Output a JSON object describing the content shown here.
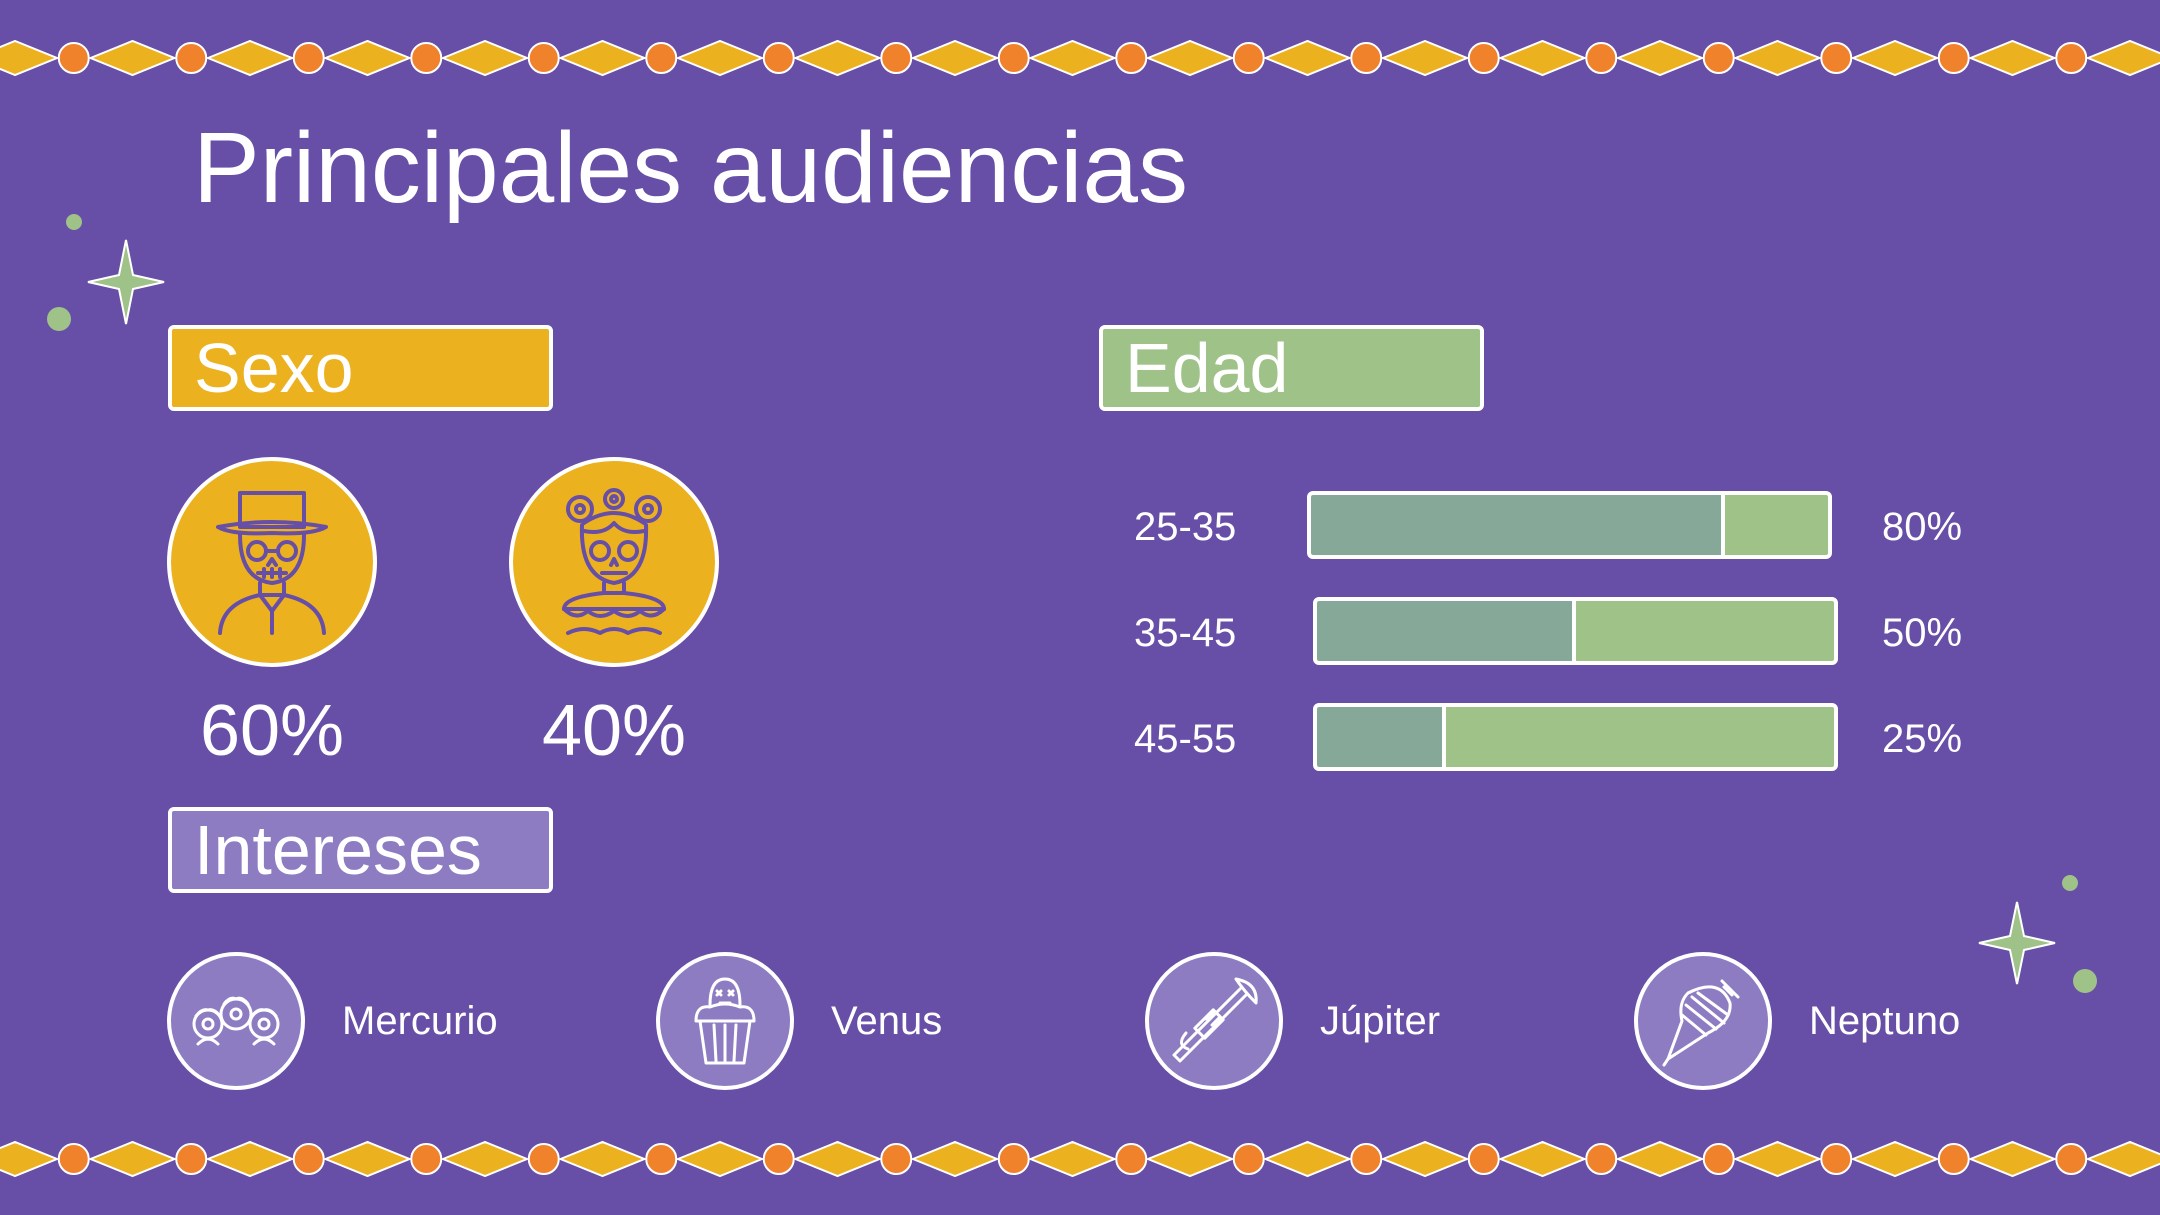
{
  "title": "Principales audiencias",
  "sections": {
    "sexo": "Sexo",
    "edad": "Edad",
    "intereses": "Intereses"
  },
  "sexo": {
    "items": [
      {
        "icon": "catrin-man-icon",
        "value": "60%"
      },
      {
        "icon": "catrina-woman-icon",
        "value": "40%"
      }
    ]
  },
  "edad": {
    "rows": [
      {
        "label": "25-35",
        "value": "80%",
        "fraction": 0.8
      },
      {
        "label": "35-45",
        "value": "50%",
        "fraction": 0.5
      },
      {
        "label": "45-55",
        "value": "25%",
        "fraction": 0.25
      }
    ]
  },
  "intereses": {
    "items": [
      {
        "label": "Mercurio",
        "icon": "marigold-flowers-icon"
      },
      {
        "label": "Venus",
        "icon": "skull-cupcake-icon"
      },
      {
        "label": "Júpiter",
        "icon": "trumpet-icon"
      },
      {
        "label": "Neptuno",
        "icon": "spinning-top-icon"
      }
    ]
  },
  "colors": {
    "background": "#674ea7",
    "yellow": "#ecb11f",
    "green": "#9fc289",
    "green_dark": "#86a898",
    "lavender": "#8e7cc3",
    "orange": "#f0822b"
  }
}
